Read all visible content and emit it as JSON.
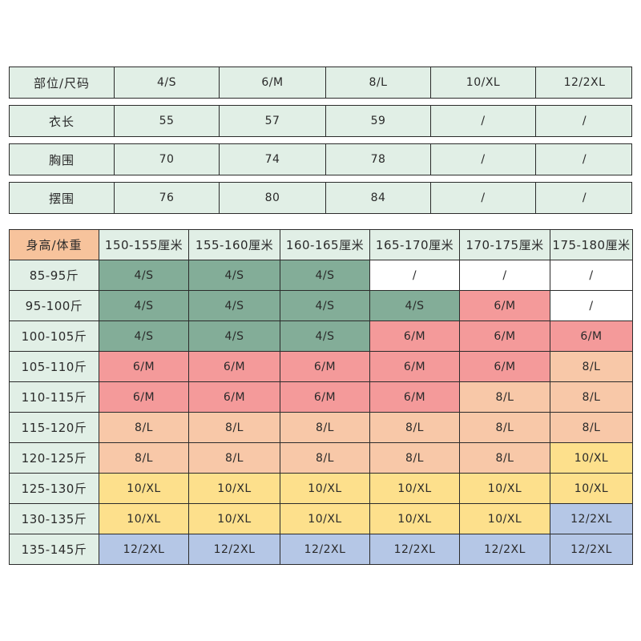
{
  "measurements": {
    "header": [
      "部位/尺码",
      "4/S",
      "6/M",
      "8/L",
      "10/XL",
      "12/2XL"
    ],
    "rows": [
      {
        "label": "衣长",
        "values": [
          "55",
          "57",
          "59",
          "/",
          "/"
        ]
      },
      {
        "label": "胸围",
        "values": [
          "70",
          "74",
          "78",
          "/",
          "/"
        ]
      },
      {
        "label": "摆围",
        "values": [
          "76",
          "80",
          "84",
          "/",
          "/"
        ]
      }
    ]
  },
  "size_chart": {
    "corner": "身高/体重",
    "columns": [
      "150-155厘米",
      "155-160厘米",
      "160-165厘米",
      "165-170厘米",
      "170-175厘米",
      "175-180厘米"
    ],
    "rows": [
      {
        "weight": "85-95斤",
        "sizes": [
          "4/S",
          "4/S",
          "4/S",
          "/",
          "/",
          "/"
        ]
      },
      {
        "weight": "95-100斤",
        "sizes": [
          "4/S",
          "4/S",
          "4/S",
          "4/S",
          "6/M",
          "/"
        ]
      },
      {
        "weight": "100-105斤",
        "sizes": [
          "4/S",
          "4/S",
          "4/S",
          "6/M",
          "6/M",
          "6/M"
        ]
      },
      {
        "weight": "105-110斤",
        "sizes": [
          "6/M",
          "6/M",
          "6/M",
          "6/M",
          "6/M",
          "8/L"
        ]
      },
      {
        "weight": "110-115斤",
        "sizes": [
          "6/M",
          "6/M",
          "6/M",
          "6/M",
          "8/L",
          "8/L"
        ]
      },
      {
        "weight": "115-120斤",
        "sizes": [
          "8/L",
          "8/L",
          "8/L",
          "8/L",
          "8/L",
          "8/L"
        ]
      },
      {
        "weight": "120-125斤",
        "sizes": [
          "8/L",
          "8/L",
          "8/L",
          "8/L",
          "8/L",
          "10/XL"
        ]
      },
      {
        "weight": "125-130斤",
        "sizes": [
          "10/XL",
          "10/XL",
          "10/XL",
          "10/XL",
          "10/XL",
          "10/XL"
        ]
      },
      {
        "weight": "130-135斤",
        "sizes": [
          "10/XL",
          "10/XL",
          "10/XL",
          "10/XL",
          "10/XL",
          "12/2XL"
        ]
      },
      {
        "weight": "135-145斤",
        "sizes": [
          "12/2XL",
          "12/2XL",
          "12/2XL",
          "12/2XL",
          "12/2XL",
          "12/2XL"
        ]
      }
    ]
  },
  "colors": {
    "header_bg": "#e1efe6",
    "corner_bg": "#f7c39c",
    "size_4S": "#83ad98",
    "size_6M": "#f49a9a",
    "size_8L": "#f8c8a8",
    "size_10XL": "#fde08c",
    "size_12_2XL": "#b5c7e6",
    "none": "#ffffff"
  }
}
